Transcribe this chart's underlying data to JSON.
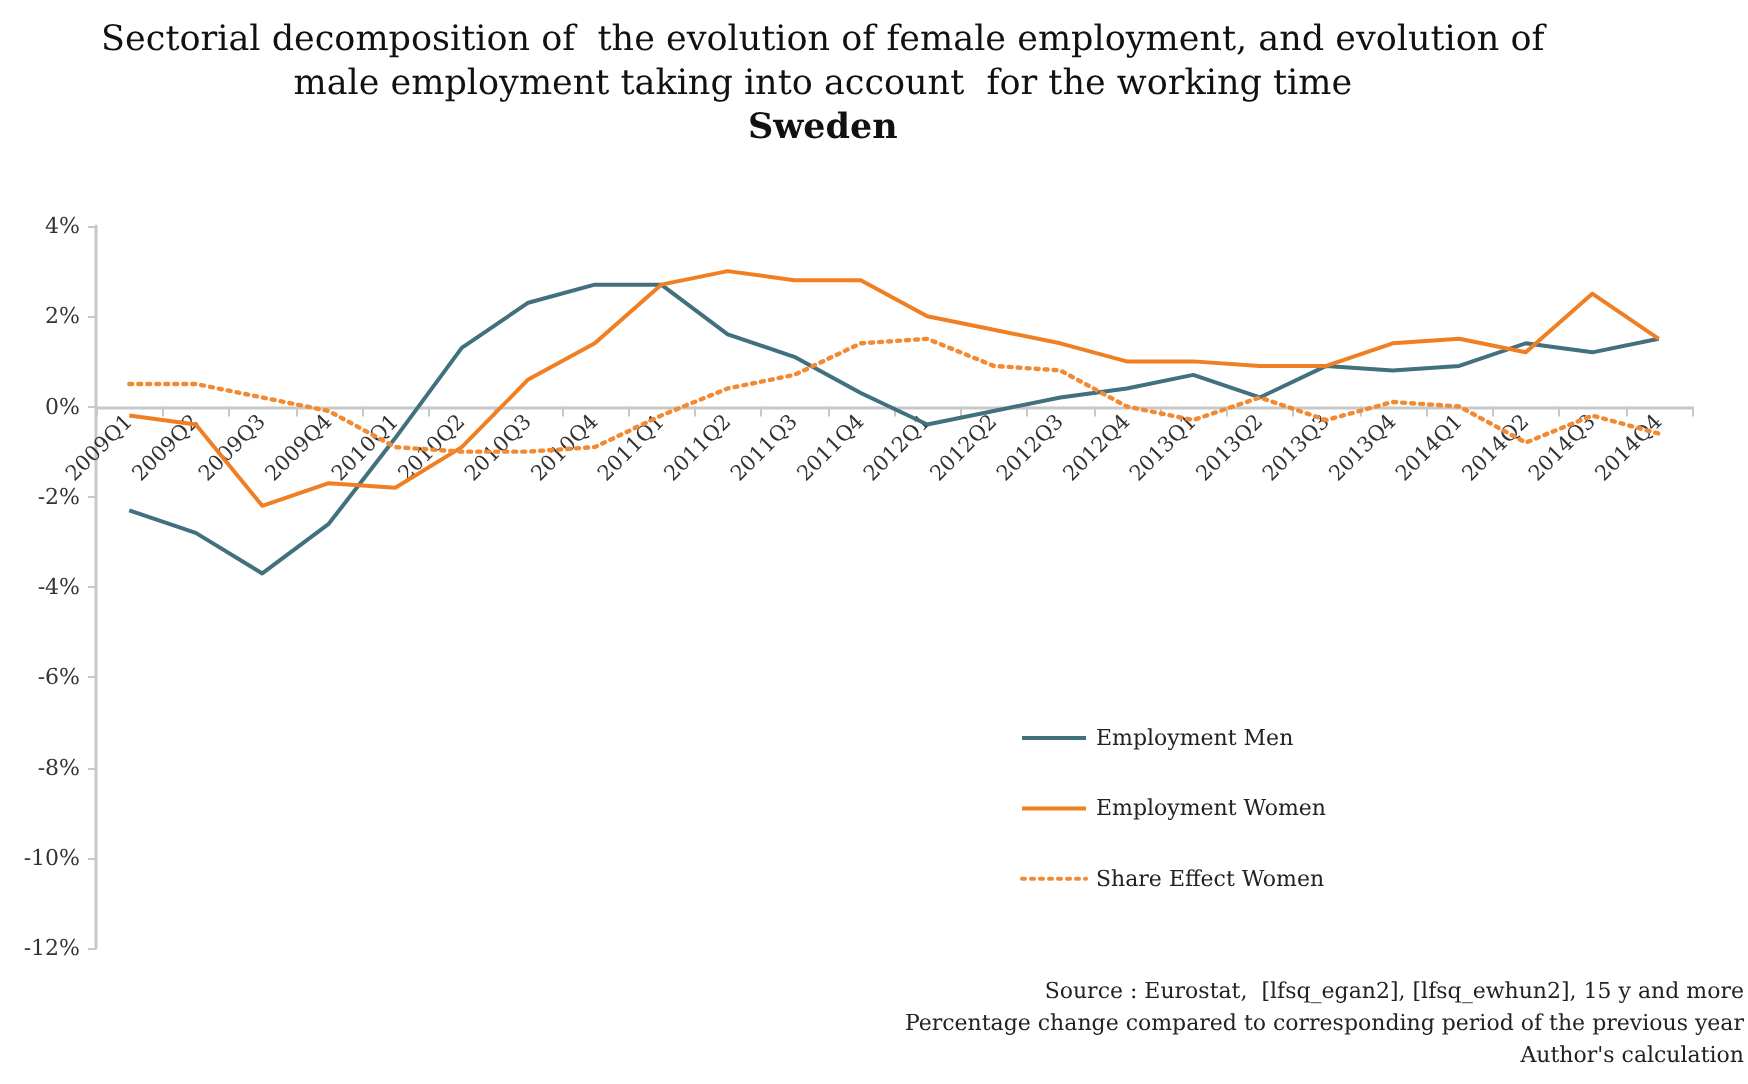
{
  "chart_data": {
    "type": "line",
    "title": "Sectorial decomposition of  the evolution of female employment, and evolution of\nmale employment taking into account  for the working time",
    "subtitle": "Sweden",
    "categories": [
      "2009Q1",
      "2009Q2",
      "2009Q3",
      "2009Q4",
      "2010Q1",
      "2010Q2",
      "2010Q3",
      "2010Q4",
      "2011Q1",
      "2011Q2",
      "2011Q3",
      "2011Q4",
      "2012Q1",
      "2012Q2",
      "2012Q3",
      "2012Q4",
      "2013Q1",
      "2013Q2",
      "2013Q3",
      "2013Q4",
      "2014Q1",
      "2014Q2",
      "2014Q3",
      "2014Q4"
    ],
    "series": [
      {
        "name": "Employment Men",
        "color": "#41707e",
        "line_style": "solid",
        "values": [
          -2.3,
          -2.8,
          -3.7,
          -2.6,
          -0.7,
          1.3,
          2.3,
          2.7,
          2.7,
          1.6,
          1.1,
          0.3,
          -0.4,
          -0.1,
          0.2,
          0.4,
          0.7,
          0.2,
          0.9,
          0.8,
          0.9,
          1.4,
          1.2,
          1.5
        ]
      },
      {
        "name": "Employment Women",
        "color": "#f07f23",
        "line_style": "solid",
        "values": [
          -0.2,
          -0.4,
          -2.2,
          -1.7,
          -1.8,
          -0.9,
          0.6,
          1.4,
          2.7,
          3.0,
          2.8,
          2.8,
          2.0,
          1.7,
          1.4,
          1.0,
          1.0,
          0.9,
          0.9,
          1.4,
          1.5,
          1.2,
          2.5,
          1.5
        ]
      },
      {
        "name": "Share Effect Women",
        "color": "#f28a33",
        "line_style": "dotted",
        "values": [
          0.5,
          0.5,
          0.2,
          -0.1,
          -0.9,
          -1.0,
          -1.0,
          -0.9,
          -0.2,
          0.4,
          0.7,
          1.4,
          1.5,
          0.9,
          0.8,
          0.0,
          -0.3,
          0.2,
          -0.3,
          0.1,
          0.0,
          -0.8,
          -0.2,
          -0.6
        ]
      }
    ],
    "ylim": [
      -12,
      4
    ],
    "yticks": [
      {
        "value": -12,
        "label": "-12%"
      },
      {
        "value": -10,
        "label": "-10%"
      },
      {
        "value": -8,
        "label": "-8%"
      },
      {
        "value": -6,
        "label": "-6%"
      },
      {
        "value": -4,
        "label": "-4%"
      },
      {
        "value": -2,
        "label": "-2%"
      },
      {
        "value": 0,
        "label": "0%"
      },
      {
        "value": 2,
        "label": "2%"
      },
      {
        "value": 4,
        "label": "4%"
      }
    ],
    "grid": false,
    "legend": "bottom right",
    "marker": "none",
    "annotations": [
      "Source : Eurostat,  [lfsq_egan2], [lfsq_ewhun2], 15 y and more",
      "Percentage change compared to corresponding period of the previous year",
      "Author's calculation"
    ]
  }
}
